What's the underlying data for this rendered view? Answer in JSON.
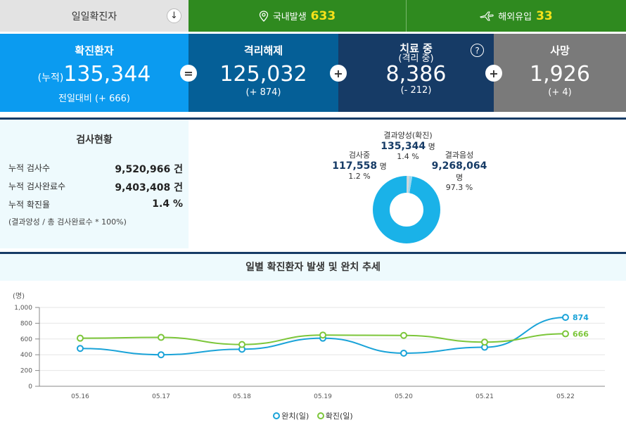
{
  "tabs": {
    "daily": "일일확진자",
    "domestic": {
      "label": "국내발생",
      "value": "633"
    },
    "overseas": {
      "label": "해외유입",
      "value": "33"
    }
  },
  "stats": {
    "confirmed": {
      "label": "확진환자",
      "prefix": "(누적)",
      "value": "135,344",
      "delta": "전일대비 (+ 666)"
    },
    "released": {
      "label": "격리해제",
      "value": "125,032",
      "delta": "(+ 874)"
    },
    "treating": {
      "label": "치료 중",
      "label2": "(격리 중)",
      "value": "8,386",
      "delta": "(- 212)"
    },
    "deaths": {
      "label": "사망",
      "value": "1,926",
      "delta": "(+ 4)"
    },
    "ops": {
      "eq": "=",
      "plus": "+"
    },
    "help": "?"
  },
  "tests": {
    "title": "검사현황",
    "rows": [
      {
        "label": "누적 검사수",
        "value": "9,520,966 건"
      },
      {
        "label": "누적 검사완료수",
        "value": "9,403,408 건"
      },
      {
        "label": "누적 확진율",
        "value": "1.4 %"
      }
    ],
    "note": "(결과양성 / 총 검사완료수 * 100%)"
  },
  "donut": {
    "testing": {
      "label": "검사중",
      "num": "117,558",
      "unit": "명",
      "pct": "1.2 %",
      "value": 1.2
    },
    "positive": {
      "label": "결과양성(확진)",
      "num": "135,344",
      "unit": "명",
      "pct": "1.4 %",
      "value": 1.4
    },
    "negative": {
      "label": "결과음성",
      "num": "9,268,064",
      "unit": "명",
      "pct": "97.3 %",
      "value": 97.3
    },
    "colors": {
      "negative": "#1ab2e8",
      "testing": "#d6d6d6",
      "positive": "#9ad8f0"
    }
  },
  "trend": {
    "title": "일별 확진환자 발생 및 완치 추세",
    "chart_data": {
      "type": "line",
      "ylabel": "(명)",
      "ylim": [
        0,
        1000
      ],
      "yticks": [
        "0",
        "200",
        "400",
        "600",
        "800",
        "1,000"
      ],
      "categories": [
        "05.16",
        "05.17",
        "05.18",
        "05.19",
        "05.20",
        "05.21",
        "05.22"
      ],
      "series": [
        {
          "name": "완치(일)",
          "color": "#1aa3d8",
          "values": [
            480,
            400,
            470,
            610,
            420,
            495,
            874
          ],
          "end_label": "874"
        },
        {
          "name": "확진(일)",
          "color": "#7cc63a",
          "values": [
            610,
            620,
            530,
            650,
            645,
            560,
            666
          ],
          "end_label": "666"
        }
      ]
    }
  }
}
